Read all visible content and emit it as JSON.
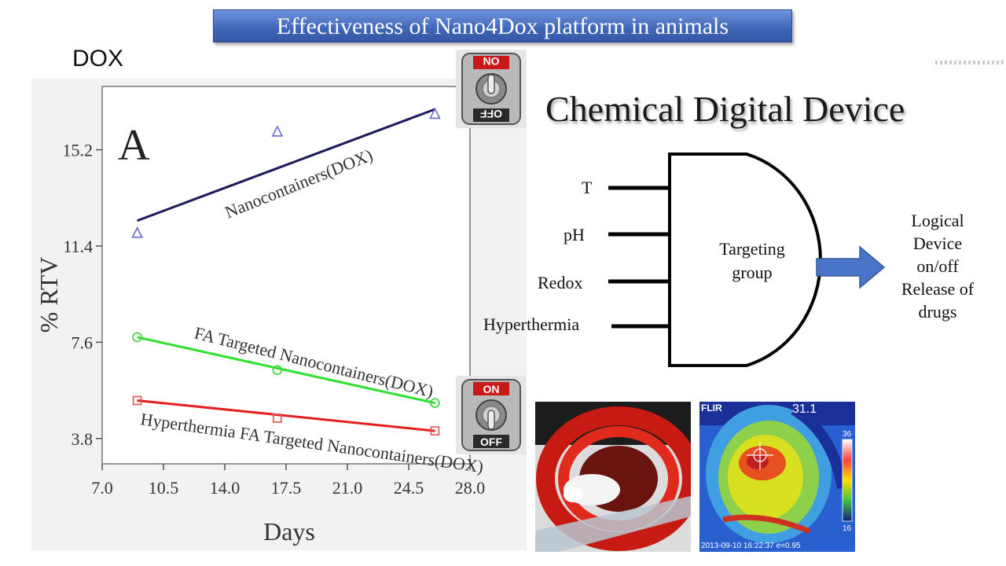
{
  "slide": {
    "title": "Effectiveness of Nano4Dox platform in animals",
    "dox_label": "DOX"
  },
  "chart_data": {
    "type": "scatter",
    "panel_letter": "A",
    "xlabel": "Days",
    "ylabel": "% RTV",
    "xlim": [
      7.0,
      28.0
    ],
    "ylim": [
      2.8,
      17.7
    ],
    "x_ticks": [
      "7.0",
      "10.5",
      "14.0",
      "17.5",
      "21.0",
      "24.5",
      "28.0"
    ],
    "y_ticks": [
      "3.8",
      "7.6",
      "11.4",
      "15.2"
    ],
    "series": [
      {
        "name": "Nanocontainers(DOX)",
        "marker": "triangle",
        "color": "#1c1a5c",
        "marker_color": "#6a6ad8",
        "x": [
          9,
          17,
          26
        ],
        "values": [
          11.9,
          15.9,
          16.6
        ],
        "fit": [
          [
            9,
            12.4
          ],
          [
            26,
            16.8
          ]
        ]
      },
      {
        "name": "FA Targeted Nanocontainers(DOX)",
        "marker": "circle",
        "color": "#2ee02e",
        "marker_color": "#3cd43c",
        "x": [
          9,
          17,
          26
        ],
        "values": [
          7.8,
          6.5,
          5.2
        ],
        "fit": [
          [
            9,
            7.8
          ],
          [
            26,
            5.2
          ]
        ]
      },
      {
        "name": "Hyperthermia FA Targeted Nanocontainers(DOX)",
        "marker": "square",
        "color": "#e61e1e",
        "marker_color": "#e85050",
        "x": [
          9,
          17,
          26
        ],
        "values": [
          5.3,
          4.6,
          4.1
        ],
        "fit": [
          [
            9,
            5.3
          ],
          [
            26,
            4.1
          ]
        ]
      }
    ]
  },
  "switches": {
    "top": {
      "on": "ON",
      "off": "OFF"
    },
    "bottom": {
      "on": "ON",
      "off": "OFF"
    }
  },
  "device": {
    "title": "Chemical Digital Device",
    "inputs": [
      "T",
      "pH",
      "Redox",
      "Hyperthermia"
    ],
    "gate_label_line1": "Targeting",
    "gate_label_line2": "group",
    "output_lines": [
      "Logical",
      "Device",
      "on/off",
      "Release of",
      "drugs"
    ],
    "arrow_color": "#4a74c8"
  },
  "photos": {
    "thermal": {
      "brand": "FLIR",
      "temperature": "31.1",
      "scale_max": "36",
      "scale_min": "16",
      "timestamp": "2013-09-10 16:22:37 e=0.95"
    }
  }
}
